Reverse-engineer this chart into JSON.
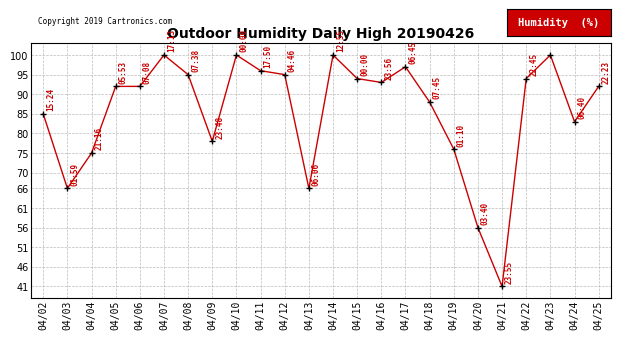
{
  "title": "Outdoor Humidity Daily High 20190426",
  "copyright": "Copyright 2019 Cartronics.com",
  "dates": [
    "04/02",
    "04/03",
    "04/04",
    "04/05",
    "04/06",
    "04/07",
    "04/08",
    "04/09",
    "04/10",
    "04/11",
    "04/12",
    "04/13",
    "04/14",
    "04/15",
    "04/16",
    "04/17",
    "04/18",
    "04/19",
    "04/20",
    "04/21",
    "04/22",
    "04/23",
    "04/24",
    "04/25"
  ],
  "values": [
    85,
    66,
    75,
    92,
    92,
    100,
    95,
    78,
    100,
    96,
    95,
    66,
    100,
    94,
    93,
    97,
    88,
    76,
    56,
    41,
    94,
    100,
    83,
    92
  ],
  "labels": [
    "15:24",
    "01:59",
    "21:16",
    "05:53",
    "07:08",
    "17:13",
    "07:38",
    "23:48",
    "00:00",
    "17:50",
    "04:46",
    "06:06",
    "12:55",
    "00:00",
    "23:56",
    "06:45",
    "07:45",
    "01:10",
    "03:40",
    "23:55",
    "22:45",
    "",
    "06:40",
    "22:23"
  ],
  "yticks": [
    41,
    46,
    51,
    56,
    61,
    66,
    70,
    75,
    80,
    85,
    90,
    95,
    100
  ],
  "line_color": "#cc0000",
  "marker_color": "#000000",
  "bg_color": "#ffffff",
  "grid_color": "#bbbbbb",
  "label_color": "#cc0000",
  "title_color": "#000000",
  "legend_bg": "#cc0000",
  "legend_text": "Humidity  (%)",
  "legend_text_color": "#ffffff"
}
